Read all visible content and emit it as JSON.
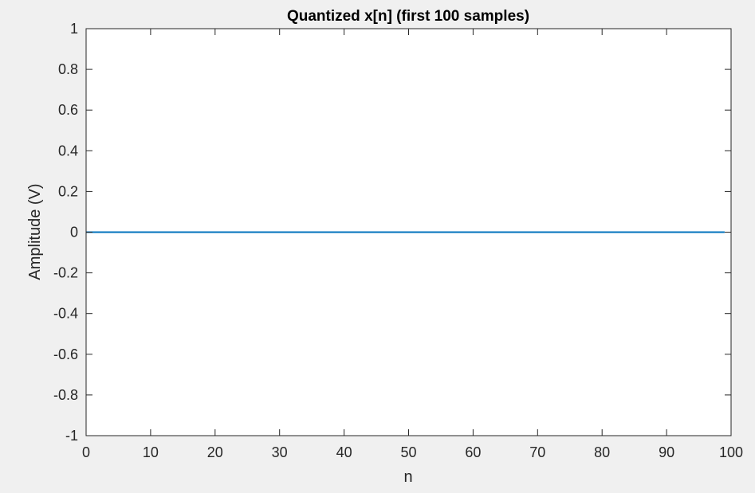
{
  "figure": {
    "background": "#f0f0f0",
    "axes_background": "#ffffff",
    "axis_color": "#262626"
  },
  "chart_data": {
    "type": "line",
    "title": "Quantized x[n] (first 100 samples)",
    "xlabel": "n",
    "ylabel": "Amplitude (V)",
    "xlim": [
      0,
      100
    ],
    "ylim": [
      -1,
      1
    ],
    "xticks": [
      0,
      10,
      20,
      30,
      40,
      50,
      60,
      70,
      80,
      90,
      100
    ],
    "xtick_labels": [
      "0",
      "10",
      "20",
      "30",
      "40",
      "50",
      "60",
      "70",
      "80",
      "90",
      "100"
    ],
    "yticks": [
      -1,
      -0.8,
      -0.6,
      -0.4,
      -0.2,
      0,
      0.2,
      0.4,
      0.6,
      0.8,
      1
    ],
    "ytick_labels": [
      "-1",
      "-0.8",
      "-0.6",
      "-0.4",
      "-0.2",
      "0",
      "0.2",
      "0.4",
      "0.6",
      "0.8",
      "1"
    ],
    "grid": false,
    "box": true,
    "series": [
      {
        "color": "#0072bd",
        "x_start": 0,
        "x_end": 99,
        "constant_value": 0
      }
    ]
  }
}
